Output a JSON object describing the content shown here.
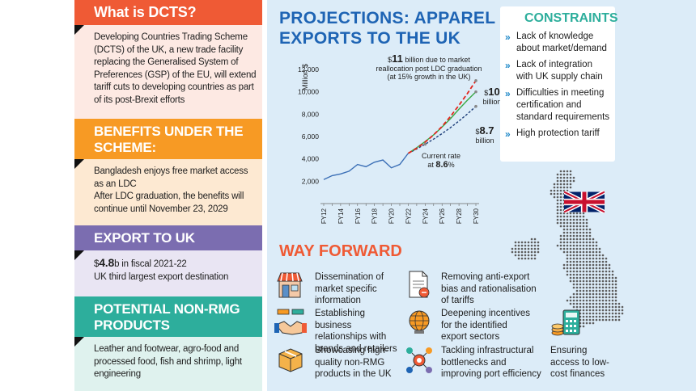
{
  "left": {
    "dcts": {
      "title": "What is DCTS?",
      "body": "Developing Countries Trading Scheme (DCTS) of the UK, a new trade facility replacing the Generalised System of Preferences (GSP) of the EU, will extend tariff cuts to developing countries as part of its post-Brexit efforts"
    },
    "benefits": {
      "title": "BENEFITS UNDER THE SCHEME:",
      "line1": "Bangladesh enjoys free market access as an LDC",
      "line2": "After LDC graduation, the benefits will continue until November 23, 2029"
    },
    "export": {
      "title": "EXPORT TO UK",
      "amount_prefix": "$",
      "amount": "4.8",
      "amount_suffix": "b in fiscal 2021-22",
      "line2": "UK third largest export destination"
    },
    "nonrmg": {
      "title": "POTENTIAL NON-RMG PRODUCTS",
      "body": "Leather and footwear, agro-food and processed food, fish and shrimp, light engineering"
    }
  },
  "projection": {
    "title": "PROJECTIONS: APPAREL EXPORTS TO THE UK",
    "anno_top_prefix": "$",
    "anno_top_big": "11",
    "anno_top_rest": " billion due to market",
    "anno_top_line2": "reallocation post LDC graduation",
    "anno_top_line3": "(at 15% growth in the UK)",
    "anno_10_prefix": "$",
    "anno_10_big": "10",
    "anno_10_unit": "billion",
    "anno_87_prefix": "$",
    "anno_87_big": "8.7",
    "anno_87_unit": "billion",
    "anno_rate_line1": "Current rate",
    "anno_rate_prefix": "at ",
    "anno_rate_big": "8.6",
    "anno_rate_suffix": "%"
  },
  "chart_data": {
    "type": "line",
    "ylabel": "Million $",
    "ylim": [
      0,
      12000
    ],
    "yticks": [
      2000,
      4000,
      6000,
      8000,
      10000,
      12000
    ],
    "ytick_labels": [
      "2,000",
      "4,000",
      "6,000",
      "8,000",
      "10,000",
      "12,000"
    ],
    "xtick_labels": [
      "FY12",
      "FY14",
      "FY16",
      "FY18",
      "FY20",
      "FY22",
      "FY24",
      "FY26",
      "FY28",
      "FY30"
    ],
    "x": [
      "FY12",
      "FY13",
      "FY14",
      "FY15",
      "FY16",
      "FY17",
      "FY18",
      "FY19",
      "FY20",
      "FY21",
      "FY22",
      "FY23",
      "FY24",
      "FY25",
      "FY26",
      "FY27",
      "FY28",
      "FY29",
      "FY30"
    ],
    "series": [
      {
        "style": "historical",
        "color": "#3b6fb6",
        "values": [
          2150,
          2500,
          2650,
          2900,
          3500,
          3300,
          3700,
          3900,
          3200,
          3500,
          4500,
          null,
          null,
          null,
          null,
          null,
          null,
          null,
          null
        ]
      },
      {
        "style": "current-rate-8.6%",
        "color": "#1f3f7a",
        "values": [
          null,
          null,
          null,
          null,
          null,
          null,
          null,
          null,
          null,
          null,
          4500,
          4890,
          5310,
          5770,
          6260,
          6800,
          7390,
          8020,
          8700
        ]
      },
      {
        "style": "green",
        "color": "#3aa845",
        "values": [
          null,
          null,
          null,
          null,
          null,
          null,
          null,
          null,
          null,
          null,
          4500,
          5000,
          5550,
          6150,
          6850,
          7600,
          8450,
          9250,
          10000
        ]
      },
      {
        "style": "red-dashed",
        "color": "#e2231a",
        "values": [
          null,
          null,
          null,
          null,
          null,
          null,
          null,
          null,
          null,
          null,
          4500,
          4950,
          5500,
          6150,
          6900,
          7800,
          8800,
          9850,
          11000
        ]
      }
    ]
  },
  "constraints": {
    "title": "CONSTRAINTS",
    "items": [
      "Lack of knowledge about market/demand",
      "Lack of integration with UK supply chain",
      "Difficulties in meeting certification and standard requirements",
      "High protection tariff"
    ]
  },
  "way_forward": {
    "title": "WAY FORWARD",
    "items": [
      "Dissemination of market specific information",
      "Removing anti-export bias and rationalisation of tariffs",
      "Establishing business relationships with brands and retailers",
      "Deepening incentives for the identified export sectors",
      "Showcasing high-quality non-RMG products in the UK",
      "Tackling infrastructural bottlenecks and improving port efficiency",
      "Ensuring access to low-cost finances"
    ]
  }
}
